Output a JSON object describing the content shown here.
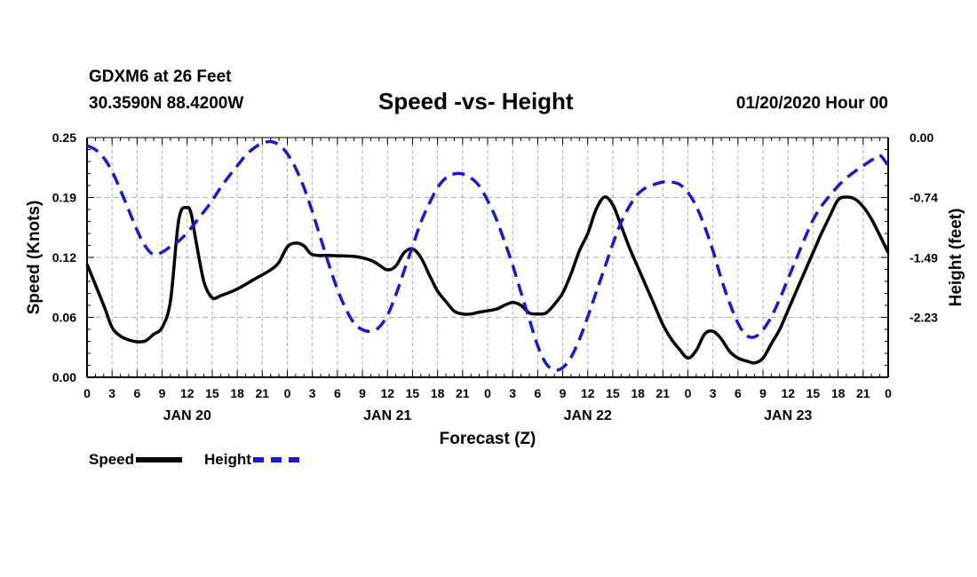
{
  "header": {
    "station": "GDXM6 at 26 Feet",
    "coords": "30.3590N 88.4200W",
    "title": "Speed -vs- Height",
    "datetime": "01/20/2020 Hour 00"
  },
  "chart_data": {
    "type": "line",
    "title": "Speed -vs- Height",
    "xlabel": "Forecast (Z)",
    "ylabel_left": "Speed (Knots)",
    "ylabel_right": "Height (feet)",
    "xlim": [
      0,
      96
    ],
    "ylim_left": [
      0,
      0.25
    ],
    "ylim_right": [
      -2.97,
      0
    ],
    "x_tick_labels": [
      "0",
      "3",
      "6",
      "9",
      "12",
      "15",
      "18",
      "21",
      "0",
      "3",
      "6",
      "9",
      "12",
      "15",
      "18",
      "21",
      "0",
      "3",
      "6",
      "9",
      "12",
      "15",
      "18",
      "21",
      "0",
      "3",
      "6",
      "9",
      "12",
      "15",
      "18",
      "21",
      "0"
    ],
    "day_labels": [
      {
        "hour": 12,
        "label": "JAN 20"
      },
      {
        "hour": 36,
        "label": "JAN 21"
      },
      {
        "hour": 60,
        "label": "JAN 22"
      },
      {
        "hour": 84,
        "label": "JAN 23"
      }
    ],
    "left_ticks": [
      {
        "value": 0.0,
        "label": "0.00"
      },
      {
        "value": 0.0625,
        "label": "0.06"
      },
      {
        "value": 0.125,
        "label": "0.12"
      },
      {
        "value": 0.1875,
        "label": "0.19"
      },
      {
        "value": 0.25,
        "label": "0.25"
      }
    ],
    "right_ticks": [
      {
        "value": 0.0,
        "label": "0.00"
      },
      {
        "value": -0.74,
        "label": "-0.74"
      },
      {
        "value": -1.49,
        "label": "-1.49"
      },
      {
        "value": -2.23,
        "label": "-2.23"
      }
    ],
    "grid": true,
    "series": [
      {
        "name": "Speed",
        "axis": "left",
        "color": "#000000",
        "dash": "solid",
        "points": [
          [
            0,
            0.118
          ],
          [
            2,
            0.075
          ],
          [
            3,
            0.052
          ],
          [
            4,
            0.043
          ],
          [
            5,
            0.039
          ],
          [
            6,
            0.037
          ],
          [
            7,
            0.038
          ],
          [
            8,
            0.045
          ],
          [
            9,
            0.052
          ],
          [
            10,
            0.08
          ],
          [
            11,
            0.165
          ],
          [
            12,
            0.177
          ],
          [
            12.5,
            0.17
          ],
          [
            13,
            0.145
          ],
          [
            14,
            0.1
          ],
          [
            15,
            0.083
          ],
          [
            16,
            0.085
          ],
          [
            18,
            0.092
          ],
          [
            20,
            0.102
          ],
          [
            22,
            0.112
          ],
          [
            23,
            0.12
          ],
          [
            24,
            0.136
          ],
          [
            25,
            0.14
          ],
          [
            26,
            0.137
          ],
          [
            27,
            0.128
          ],
          [
            29,
            0.127
          ],
          [
            32,
            0.126
          ],
          [
            34,
            0.122
          ],
          [
            35,
            0.117
          ],
          [
            36,
            0.112
          ],
          [
            37,
            0.116
          ],
          [
            38,
            0.13
          ],
          [
            39,
            0.134
          ],
          [
            40,
            0.125
          ],
          [
            41,
            0.107
          ],
          [
            42,
            0.09
          ],
          [
            43,
            0.079
          ],
          [
            44,
            0.069
          ],
          [
            45,
            0.066
          ],
          [
            46,
            0.066
          ],
          [
            47,
            0.068
          ],
          [
            49,
            0.071
          ],
          [
            50,
            0.075
          ],
          [
            51,
            0.078
          ],
          [
            52,
            0.075
          ],
          [
            53,
            0.067
          ],
          [
            54,
            0.066
          ],
          [
            55,
            0.067
          ],
          [
            56,
            0.076
          ],
          [
            57,
            0.088
          ],
          [
            58,
            0.108
          ],
          [
            59,
            0.132
          ],
          [
            60,
            0.15
          ],
          [
            61,
            0.175
          ],
          [
            62,
            0.188
          ],
          [
            63,
            0.18
          ],
          [
            64,
            0.158
          ],
          [
            65,
            0.135
          ],
          [
            66,
            0.115
          ],
          [
            67,
            0.095
          ],
          [
            68,
            0.075
          ],
          [
            69,
            0.055
          ],
          [
            70,
            0.04
          ],
          [
            71,
            0.029
          ],
          [
            72,
            0.02
          ],
          [
            73,
            0.028
          ],
          [
            74,
            0.045
          ],
          [
            75,
            0.048
          ],
          [
            76,
            0.04
          ],
          [
            77,
            0.027
          ],
          [
            78,
            0.02
          ],
          [
            79,
            0.017
          ],
          [
            80,
            0.015
          ],
          [
            81,
            0.02
          ],
          [
            82,
            0.035
          ],
          [
            83,
            0.05
          ],
          [
            84,
            0.07
          ],
          [
            85,
            0.09
          ],
          [
            86,
            0.11
          ],
          [
            87,
            0.13
          ],
          [
            88,
            0.15
          ],
          [
            89,
            0.168
          ],
          [
            90,
            0.185
          ],
          [
            91,
            0.188
          ],
          [
            92,
            0.186
          ],
          [
            93,
            0.178
          ],
          [
            94,
            0.165
          ],
          [
            95,
            0.148
          ],
          [
            96,
            0.13
          ]
        ]
      },
      {
        "name": "Height",
        "axis": "right",
        "color": "#1a1acd",
        "dash": "dashed",
        "points": [
          [
            0,
            -0.1
          ],
          [
            1,
            -0.15
          ],
          [
            2,
            -0.25
          ],
          [
            3,
            -0.42
          ],
          [
            4,
            -0.65
          ],
          [
            5,
            -0.9
          ],
          [
            6,
            -1.15
          ],
          [
            7,
            -1.35
          ],
          [
            8,
            -1.45
          ],
          [
            9,
            -1.42
          ],
          [
            10,
            -1.35
          ],
          [
            11,
            -1.28
          ],
          [
            12,
            -1.18
          ],
          [
            13,
            -1.05
          ],
          [
            14,
            -0.92
          ],
          [
            15,
            -0.78
          ],
          [
            16,
            -0.62
          ],
          [
            17,
            -0.48
          ],
          [
            18,
            -0.35
          ],
          [
            19,
            -0.22
          ],
          [
            20,
            -0.13
          ],
          [
            21,
            -0.07
          ],
          [
            22,
            -0.05
          ],
          [
            23,
            -0.09
          ],
          [
            24,
            -0.2
          ],
          [
            25,
            -0.38
          ],
          [
            26,
            -0.62
          ],
          [
            27,
            -0.92
          ],
          [
            28,
            -1.25
          ],
          [
            29,
            -1.58
          ],
          [
            30,
            -1.88
          ],
          [
            31,
            -2.12
          ],
          [
            32,
            -2.3
          ],
          [
            33,
            -2.38
          ],
          [
            34,
            -2.4
          ],
          [
            35,
            -2.35
          ],
          [
            36,
            -2.2
          ],
          [
            37,
            -1.95
          ],
          [
            38,
            -1.65
          ],
          [
            39,
            -1.35
          ],
          [
            40,
            -1.05
          ],
          [
            41,
            -0.82
          ],
          [
            42,
            -0.62
          ],
          [
            43,
            -0.5
          ],
          [
            44,
            -0.45
          ],
          [
            45,
            -0.45
          ],
          [
            46,
            -0.5
          ],
          [
            47,
            -0.6
          ],
          [
            48,
            -0.78
          ],
          [
            49,
            -1.0
          ],
          [
            50,
            -1.28
          ],
          [
            51,
            -1.58
          ],
          [
            52,
            -1.92
          ],
          [
            53,
            -2.25
          ],
          [
            54,
            -2.58
          ],
          [
            55,
            -2.8
          ],
          [
            56,
            -2.88
          ],
          [
            57,
            -2.85
          ],
          [
            58,
            -2.72
          ],
          [
            59,
            -2.5
          ],
          [
            60,
            -2.22
          ],
          [
            61,
            -1.92
          ],
          [
            62,
            -1.62
          ],
          [
            63,
            -1.32
          ],
          [
            64,
            -1.05
          ],
          [
            65,
            -0.85
          ],
          [
            66,
            -0.7
          ],
          [
            67,
            -0.62
          ],
          [
            68,
            -0.58
          ],
          [
            69,
            -0.55
          ],
          [
            70,
            -0.55
          ],
          [
            71,
            -0.58
          ],
          [
            72,
            -0.68
          ],
          [
            73,
            -0.85
          ],
          [
            74,
            -1.1
          ],
          [
            75,
            -1.4
          ],
          [
            76,
            -1.75
          ],
          [
            77,
            -2.05
          ],
          [
            78,
            -2.3
          ],
          [
            79,
            -2.45
          ],
          [
            80,
            -2.47
          ],
          [
            81,
            -2.38
          ],
          [
            82,
            -2.22
          ],
          [
            83,
            -2.0
          ],
          [
            84,
            -1.75
          ],
          [
            85,
            -1.5
          ],
          [
            86,
            -1.25
          ],
          [
            87,
            -1.02
          ],
          [
            88,
            -0.85
          ],
          [
            89,
            -0.72
          ],
          [
            90,
            -0.6
          ],
          [
            91,
            -0.5
          ],
          [
            92,
            -0.42
          ],
          [
            93,
            -0.35
          ],
          [
            94,
            -0.28
          ],
          [
            95,
            -0.22
          ],
          [
            96,
            -0.35
          ]
        ]
      }
    ]
  },
  "legend": {
    "speed_label": "Speed",
    "height_label": "Height"
  },
  "colors": {
    "speed": "#000000",
    "height": "#1a1acd",
    "grid": "#b0b0b0"
  }
}
